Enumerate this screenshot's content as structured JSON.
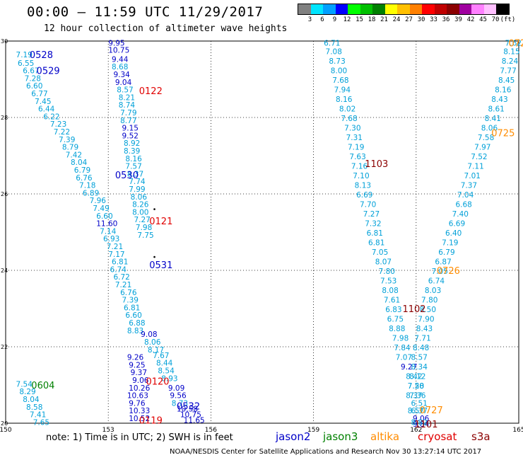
{
  "header": {
    "title": "00:00 – 11:59 UTC 11/29/2017",
    "subtitle": "12 hour collection of altimeter wave heights"
  },
  "colorbar": {
    "ticks": [
      "3",
      "6",
      "9",
      "12",
      "15",
      "18",
      "21",
      "24",
      "27",
      "30",
      "33",
      "36",
      "39",
      "42",
      "45",
      "70",
      "(ft)"
    ],
    "colors": [
      "#808080",
      "#00e5ff",
      "#00a0ff",
      "#0000ff",
      "#00ff00",
      "#00c000",
      "#008000",
      "#ffff00",
      "#ffc000",
      "#ff8000",
      "#ff0000",
      "#c00000",
      "#8b0000",
      "#a000a0",
      "#ff80ff",
      "#ffc0ff",
      "#000000"
    ]
  },
  "chart_data": {
    "type": "scatter",
    "xlim": [
      150,
      165
    ],
    "ylim": [
      20,
      30
    ],
    "xticks": [
      "150",
      "153",
      "156",
      "159",
      "162",
      "165"
    ],
    "yticks": [
      "20",
      "22",
      "24",
      "26",
      "28",
      "30"
    ],
    "grid": true,
    "color_scale": {
      "0-9": "#00a0d8",
      "9-12": "#0000c8",
      "12+": "#00d000"
    },
    "points": [
      {
        "x": 150.3,
        "y": 29.65,
        "v": "7.19"
      },
      {
        "x": 150.35,
        "y": 29.43,
        "v": "6.55"
      },
      {
        "x": 150.5,
        "y": 29.23,
        "v": "6.67"
      },
      {
        "x": 150.55,
        "y": 29.03,
        "v": "7.28"
      },
      {
        "x": 150.6,
        "y": 28.83,
        "v": "6.60"
      },
      {
        "x": 150.75,
        "y": 28.63,
        "v": "6.77"
      },
      {
        "x": 150.85,
        "y": 28.43,
        "v": "7.45"
      },
      {
        "x": 150.95,
        "y": 28.23,
        "v": "6.44"
      },
      {
        "x": 151.1,
        "y": 28.03,
        "v": "6.22"
      },
      {
        "x": 151.3,
        "y": 27.83,
        "v": "7.23"
      },
      {
        "x": 151.4,
        "y": 27.63,
        "v": "7.22"
      },
      {
        "x": 151.55,
        "y": 27.43,
        "v": "7.39"
      },
      {
        "x": 151.65,
        "y": 27.23,
        "v": "8.79"
      },
      {
        "x": 151.75,
        "y": 27.03,
        "v": "7.42"
      },
      {
        "x": 151.9,
        "y": 26.83,
        "v": "8.04"
      },
      {
        "x": 152.0,
        "y": 26.63,
        "v": "6.79"
      },
      {
        "x": 152.05,
        "y": 26.43,
        "v": "6.76"
      },
      {
        "x": 152.15,
        "y": 26.23,
        "v": "7.18"
      },
      {
        "x": 152.25,
        "y": 26.03,
        "v": "6.89"
      },
      {
        "x": 152.45,
        "y": 25.83,
        "v": "7.96"
      },
      {
        "x": 152.55,
        "y": 25.63,
        "v": "7.49"
      },
      {
        "x": 152.65,
        "y": 25.43,
        "v": "6.60"
      },
      {
        "x": 152.65,
        "y": 25.23,
        "v": "11.60"
      },
      {
        "x": 152.75,
        "y": 25.03,
        "v": "7.14"
      },
      {
        "x": 152.85,
        "y": 24.83,
        "v": "6.93"
      },
      {
        "x": 152.95,
        "y": 24.63,
        "v": "7.21"
      },
      {
        "x": 153.0,
        "y": 24.43,
        "v": "7.17"
      },
      {
        "x": 153.1,
        "y": 24.23,
        "v": "6.81"
      },
      {
        "x": 153.05,
        "y": 24.03,
        "v": "6.74"
      },
      {
        "x": 153.15,
        "y": 23.83,
        "v": "6.72"
      },
      {
        "x": 153.2,
        "y": 23.63,
        "v": "7.21"
      },
      {
        "x": 153.35,
        "y": 23.43,
        "v": "6.76"
      },
      {
        "x": 153.4,
        "y": 23.23,
        "v": "7.39"
      },
      {
        "x": 153.45,
        "y": 23.03,
        "v": "6.81"
      },
      {
        "x": 153.5,
        "y": 22.83,
        "v": "6.60"
      },
      {
        "x": 153.6,
        "y": 22.63,
        "v": "6.88"
      },
      {
        "x": 153.55,
        "y": 22.43,
        "v": "8.83"
      },
      {
        "x": 153.0,
        "y": 29.95,
        "v": "9.95"
      },
      {
        "x": 153.0,
        "y": 29.77,
        "v": "10.75"
      },
      {
        "x": 153.1,
        "y": 29.53,
        "v": "9.44"
      },
      {
        "x": 153.1,
        "y": 29.33,
        "v": "8.68"
      },
      {
        "x": 153.15,
        "y": 29.13,
        "v": "9.34"
      },
      {
        "x": 153.2,
        "y": 28.93,
        "v": "9.04"
      },
      {
        "x": 153.25,
        "y": 28.73,
        "v": "8.57"
      },
      {
        "x": 153.3,
        "y": 28.53,
        "v": "8.21"
      },
      {
        "x": 153.3,
        "y": 28.33,
        "v": "8.74"
      },
      {
        "x": 153.35,
        "y": 28.13,
        "v": "7.79"
      },
      {
        "x": 153.35,
        "y": 27.93,
        "v": "8.77"
      },
      {
        "x": 153.4,
        "y": 27.73,
        "v": "9.15"
      },
      {
        "x": 153.4,
        "y": 27.53,
        "v": "9.52"
      },
      {
        "x": 153.45,
        "y": 27.33,
        "v": "8.92"
      },
      {
        "x": 153.45,
        "y": 27.13,
        "v": "8.39"
      },
      {
        "x": 153.5,
        "y": 26.93,
        "v": "8.16"
      },
      {
        "x": 153.5,
        "y": 26.73,
        "v": "7.57"
      },
      {
        "x": 153.55,
        "y": 26.53,
        "v": "8.37"
      },
      {
        "x": 153.6,
        "y": 26.33,
        "v": "7.74"
      },
      {
        "x": 153.6,
        "y": 26.13,
        "v": "7.99"
      },
      {
        "x": 153.65,
        "y": 25.93,
        "v": "8.06"
      },
      {
        "x": 153.7,
        "y": 25.73,
        "v": "8.26"
      },
      {
        "x": 153.7,
        "y": 25.53,
        "v": "8.00"
      },
      {
        "x": 153.75,
        "y": 25.33,
        "v": "7.27"
      },
      {
        "x": 153.8,
        "y": 25.13,
        "v": "7.98"
      },
      {
        "x": 153.85,
        "y": 24.93,
        "v": "7.75"
      },
      {
        "x": 153.95,
        "y": 22.33,
        "v": "9.08"
      },
      {
        "x": 154.05,
        "y": 22.13,
        "v": "8.06"
      },
      {
        "x": 154.15,
        "y": 21.93,
        "v": "8.17"
      },
      {
        "x": 154.3,
        "y": 21.78,
        "v": "7.67"
      },
      {
        "x": 154.4,
        "y": 21.58,
        "v": "8.44"
      },
      {
        "x": 154.45,
        "y": 21.38,
        "v": "8.54"
      },
      {
        "x": 154.55,
        "y": 21.18,
        "v": "8.93"
      },
      {
        "x": 153.55,
        "y": 21.73,
        "v": "9.26"
      },
      {
        "x": 153.6,
        "y": 21.53,
        "v": "9.25"
      },
      {
        "x": 153.65,
        "y": 21.33,
        "v": "9.37"
      },
      {
        "x": 153.7,
        "y": 21.13,
        "v": "9.06"
      },
      {
        "x": 153.6,
        "y": 20.93,
        "v": "10.26"
      },
      {
        "x": 153.55,
        "y": 20.73,
        "v": "10.63"
      },
      {
        "x": 153.6,
        "y": 20.53,
        "v": "9.76"
      },
      {
        "x": 153.6,
        "y": 20.33,
        "v": "10.33"
      },
      {
        "x": 153.6,
        "y": 20.13,
        "v": "10.52"
      },
      {
        "x": 154.75,
        "y": 20.93,
        "v": "9.09"
      },
      {
        "x": 154.8,
        "y": 20.73,
        "v": "9.56"
      },
      {
        "x": 154.85,
        "y": 20.53,
        "v": "8.73"
      },
      {
        "x": 155.0,
        "y": 20.38,
        "v": "10.58"
      },
      {
        "x": 155.1,
        "y": 20.23,
        "v": "10.75"
      },
      {
        "x": 155.2,
        "y": 20.08,
        "v": "11.65"
      },
      {
        "x": 150.3,
        "y": 21.03,
        "v": "7.54"
      },
      {
        "x": 150.4,
        "y": 20.83,
        "v": "8.29"
      },
      {
        "x": 150.5,
        "y": 20.63,
        "v": "8.04"
      },
      {
        "x": 150.6,
        "y": 20.43,
        "v": "8.58"
      },
      {
        "x": 150.7,
        "y": 20.23,
        "v": "7.41"
      },
      {
        "x": 150.8,
        "y": 20.03,
        "v": "7.65"
      },
      {
        "x": 159.3,
        "y": 29.95,
        "v": "6.71"
      },
      {
        "x": 159.35,
        "y": 29.73,
        "v": "7.08"
      },
      {
        "x": 159.45,
        "y": 29.48,
        "v": "8.73"
      },
      {
        "x": 159.5,
        "y": 29.23,
        "v": "8.00"
      },
      {
        "x": 159.55,
        "y": 28.98,
        "v": "7.68"
      },
      {
        "x": 159.6,
        "y": 28.73,
        "v": "7.94"
      },
      {
        "x": 159.65,
        "y": 28.48,
        "v": "8.16"
      },
      {
        "x": 159.75,
        "y": 28.23,
        "v": "8.02"
      },
      {
        "x": 159.8,
        "y": 27.98,
        "v": "7.68"
      },
      {
        "x": 159.9,
        "y": 27.73,
        "v": "7.30"
      },
      {
        "x": 159.95,
        "y": 27.48,
        "v": "7.31"
      },
      {
        "x": 160.0,
        "y": 27.23,
        "v": "7.19"
      },
      {
        "x": 160.05,
        "y": 26.98,
        "v": "7.63"
      },
      {
        "x": 160.1,
        "y": 26.73,
        "v": "7.16"
      },
      {
        "x": 160.15,
        "y": 26.48,
        "v": "7.10"
      },
      {
        "x": 160.2,
        "y": 26.23,
        "v": "8.13"
      },
      {
        "x": 160.25,
        "y": 25.98,
        "v": "6.69"
      },
      {
        "x": 160.35,
        "y": 25.73,
        "v": "7.70"
      },
      {
        "x": 160.45,
        "y": 25.48,
        "v": "7.27"
      },
      {
        "x": 160.5,
        "y": 25.23,
        "v": "7.32"
      },
      {
        "x": 160.55,
        "y": 24.98,
        "v": "6.81"
      },
      {
        "x": 160.6,
        "y": 24.73,
        "v": "6.81"
      },
      {
        "x": 160.7,
        "y": 24.48,
        "v": "7.05"
      },
      {
        "x": 160.8,
        "y": 24.23,
        "v": "8.07"
      },
      {
        "x": 160.9,
        "y": 23.98,
        "v": "7.80"
      },
      {
        "x": 160.95,
        "y": 23.73,
        "v": "7.53"
      },
      {
        "x": 161.0,
        "y": 23.48,
        "v": "8.08"
      },
      {
        "x": 161.05,
        "y": 23.23,
        "v": "7.61"
      },
      {
        "x": 161.1,
        "y": 22.98,
        "v": "6.83"
      },
      {
        "x": 161.15,
        "y": 22.73,
        "v": "6.75"
      },
      {
        "x": 161.2,
        "y": 22.48,
        "v": "8.88"
      },
      {
        "x": 161.3,
        "y": 22.23,
        "v": "7.98"
      },
      {
        "x": 161.35,
        "y": 21.98,
        "v": "7.84"
      },
      {
        "x": 161.4,
        "y": 21.73,
        "v": "7.07"
      },
      {
        "x": 161.55,
        "y": 21.48,
        "v": "9.27"
      },
      {
        "x": 161.7,
        "y": 21.23,
        "v": "8.42"
      },
      {
        "x": 161.75,
        "y": 20.98,
        "v": "7.20"
      },
      {
        "x": 161.8,
        "y": 20.73,
        "v": "7.36"
      },
      {
        "x": 161.85,
        "y": 20.53,
        "v": "6.51"
      },
      {
        "x": 161.85,
        "y": 20.33,
        "v": "6.37"
      },
      {
        "x": 161.9,
        "y": 20.13,
        "v": "9.06"
      },
      {
        "x": 161.9,
        "y": 19.98,
        "v": "9.84"
      },
      {
        "x": 164.6,
        "y": 29.95,
        "v": "7.62"
      },
      {
        "x": 164.55,
        "y": 29.73,
        "v": "8.15"
      },
      {
        "x": 164.5,
        "y": 29.48,
        "v": "8.24"
      },
      {
        "x": 164.45,
        "y": 29.23,
        "v": "7.77"
      },
      {
        "x": 164.4,
        "y": 28.98,
        "v": "8.45"
      },
      {
        "x": 164.3,
        "y": 28.73,
        "v": "8.16"
      },
      {
        "x": 164.2,
        "y": 28.48,
        "v": "8.43"
      },
      {
        "x": 164.1,
        "y": 28.23,
        "v": "8.61"
      },
      {
        "x": 164.0,
        "y": 27.98,
        "v": "8.41"
      },
      {
        "x": 163.9,
        "y": 27.73,
        "v": "8.06"
      },
      {
        "x": 163.8,
        "y": 27.48,
        "v": "7.58"
      },
      {
        "x": 163.7,
        "y": 27.23,
        "v": "7.97"
      },
      {
        "x": 163.6,
        "y": 26.98,
        "v": "7.52"
      },
      {
        "x": 163.5,
        "y": 26.73,
        "v": "7.11"
      },
      {
        "x": 163.4,
        "y": 26.48,
        "v": "7.01"
      },
      {
        "x": 163.3,
        "y": 26.23,
        "v": "7.37"
      },
      {
        "x": 163.2,
        "y": 25.98,
        "v": "7.04"
      },
      {
        "x": 163.15,
        "y": 25.73,
        "v": "6.68"
      },
      {
        "x": 163.05,
        "y": 25.48,
        "v": "7.40"
      },
      {
        "x": 162.95,
        "y": 25.23,
        "v": "6.69"
      },
      {
        "x": 162.85,
        "y": 24.98,
        "v": "6.40"
      },
      {
        "x": 162.75,
        "y": 24.73,
        "v": "7.19"
      },
      {
        "x": 162.65,
        "y": 24.48,
        "v": "6.79"
      },
      {
        "x": 162.55,
        "y": 24.23,
        "v": "6.87"
      },
      {
        "x": 162.45,
        "y": 23.98,
        "v": "7.05"
      },
      {
        "x": 162.35,
        "y": 23.73,
        "v": "6.74"
      },
      {
        "x": 162.25,
        "y": 23.48,
        "v": "8.03"
      },
      {
        "x": 162.15,
        "y": 23.23,
        "v": "7.80"
      },
      {
        "x": 162.1,
        "y": 22.98,
        "v": "8.50"
      },
      {
        "x": 162.05,
        "y": 22.73,
        "v": "7.90"
      },
      {
        "x": 162.0,
        "y": 22.48,
        "v": "8.43"
      },
      {
        "x": 161.95,
        "y": 22.23,
        "v": "7.71"
      },
      {
        "x": 161.9,
        "y": 21.98,
        "v": "8.48"
      },
      {
        "x": 161.85,
        "y": 21.73,
        "v": "8.57"
      },
      {
        "x": 161.85,
        "y": 21.48,
        "v": "8.34"
      },
      {
        "x": 161.8,
        "y": 21.23,
        "v": "8.12"
      },
      {
        "x": 161.75,
        "y": 20.98,
        "v": "7.58"
      },
      {
        "x": 161.7,
        "y": 20.73,
        "v": "8.37"
      },
      {
        "x": 161.75,
        "y": 20.33,
        "v": "8.57"
      },
      {
        "x": 161.85,
        "y": 20.03,
        "v": "8.82"
      }
    ],
    "pass_labels": [
      {
        "x": 150.7,
        "y": 29.65,
        "t": "0528",
        "c": "#0000c8"
      },
      {
        "x": 150.9,
        "y": 29.23,
        "t": "0529",
        "c": "#0000c8"
      },
      {
        "x": 153.2,
        "y": 26.5,
        "t": "0530",
        "c": "#0000c8"
      },
      {
        "x": 154.2,
        "y": 24.15,
        "t": "0531",
        "c": "#0000c8"
      },
      {
        "x": 155.0,
        "y": 20.45,
        "t": "0532",
        "c": "#0000c8"
      },
      {
        "x": 153.9,
        "y": 28.7,
        "t": "0122",
        "c": "#e00000"
      },
      {
        "x": 154.2,
        "y": 25.3,
        "t": "0121",
        "c": "#e00000"
      },
      {
        "x": 154.1,
        "y": 21.1,
        "t": "0120",
        "c": "#e00000"
      },
      {
        "x": 153.9,
        "y": 20.08,
        "t": "0119",
        "c": "#e00000"
      },
      {
        "x": 150.75,
        "y": 21.0,
        "t": "0604",
        "c": "#008000"
      },
      {
        "x": 164.7,
        "y": 29.95,
        "t": "0724",
        "c": "#ff8c00"
      },
      {
        "x": 164.2,
        "y": 27.6,
        "t": "0725",
        "c": "#ff8c00"
      },
      {
        "x": 162.6,
        "y": 24.0,
        "t": "0726",
        "c": "#ff8c00"
      },
      {
        "x": 162.1,
        "y": 20.35,
        "t": "0727",
        "c": "#ff8c00"
      },
      {
        "x": 160.5,
        "y": 26.8,
        "t": "1103",
        "c": "#8b0000"
      },
      {
        "x": 161.6,
        "y": 23.0,
        "t": "1102",
        "c": "#8b0000"
      },
      {
        "x": 161.95,
        "y": 19.98,
        "t": "1101",
        "c": "#8b0000"
      }
    ],
    "stray_points": [
      {
        "x": 154.35,
        "y": 25.6
      },
      {
        "x": 154.35,
        "y": 24.35
      }
    ]
  },
  "legend_missions": [
    {
      "name": "jason2",
      "color": "#0000c8"
    },
    {
      "name": "jason3",
      "color": "#008000"
    },
    {
      "name": "altika",
      "color": "#ff8c00"
    },
    {
      "name": "cryosat",
      "color": "#e00000"
    },
    {
      "name": "s3a",
      "color": "#8b0000"
    }
  ],
  "footer": {
    "note": "note: 1) Time is in UTC; 2) SWH is in feet",
    "credit": "NOAA/NESDIS Center for Satellite Applications and Research   Nov 30 13:27:14 UTC 2017"
  }
}
